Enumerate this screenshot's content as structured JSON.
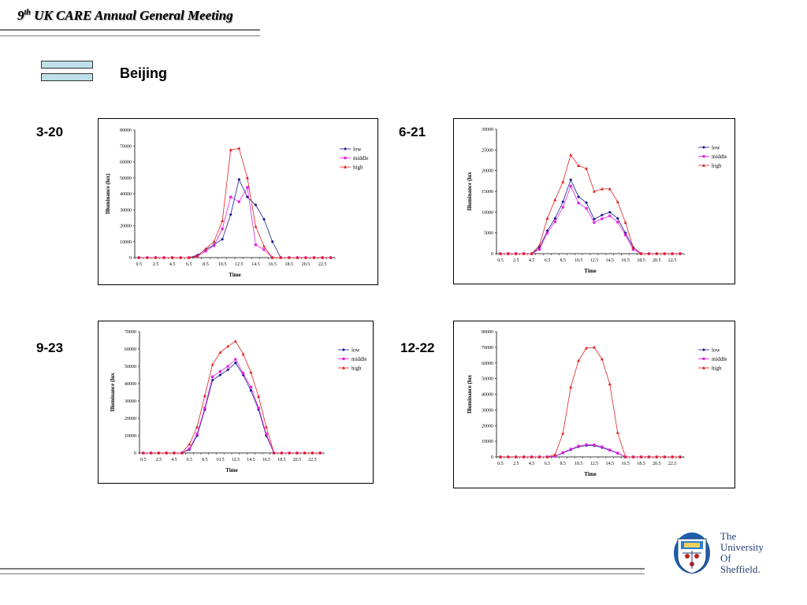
{
  "header": {
    "title_sup": "th",
    "title_num": "9",
    "title": " UK CARE Annual General Meeting"
  },
  "section": {
    "title": "Beijing"
  },
  "logo": {
    "lines": [
      "The",
      "University",
      "Of",
      "Sheffield."
    ]
  },
  "colors": {
    "low": "#1a1a8c",
    "middle": "#e020e0",
    "high": "#e02020",
    "bullet": "#bfe0e8",
    "logo_blue": "#1f3f75"
  },
  "chart_data": [
    {
      "type": "line",
      "label": "3-20",
      "xlabel": "Time",
      "ylabel": "Illuminance (lux)",
      "ylim": [
        0,
        80000
      ],
      "yticks": [
        0,
        10000,
        20000,
        30000,
        40000,
        50000,
        60000,
        70000,
        80000
      ],
      "xticklabels": [
        "0.5",
        "2.5",
        "4.5",
        "6.5",
        "8.5",
        "10.5",
        "12.5",
        "14.5",
        "16.5",
        "18.5",
        "20.5",
        "22.5"
      ],
      "x": [
        0.5,
        1.5,
        2.5,
        3.5,
        4.5,
        5.5,
        6.5,
        7.5,
        8.5,
        9.5,
        10.5,
        11.5,
        12.5,
        13.5,
        14.5,
        15.5,
        16.5,
        17.5,
        18.5,
        19.5,
        20.5,
        21.5,
        22.5,
        23.5
      ],
      "legend_position": "right",
      "series": [
        {
          "name": "low",
          "marker": "diamond",
          "values": [
            0,
            0,
            0,
            0,
            0,
            0,
            0,
            1500,
            5000,
            8000,
            11500,
            27000,
            49000,
            38000,
            33000,
            24000,
            10000,
            0,
            0,
            0,
            0,
            0,
            0,
            0
          ]
        },
        {
          "name": "middle",
          "marker": "square",
          "values": [
            0,
            0,
            0,
            0,
            0,
            0,
            0,
            700,
            4000,
            7500,
            18000,
            38000,
            35000,
            44000,
            8000,
            5000,
            0,
            0,
            0,
            0,
            0,
            0,
            0,
            0
          ]
        },
        {
          "name": "high",
          "marker": "triangle",
          "values": [
            0,
            0,
            0,
            0,
            0,
            0,
            0,
            1000,
            5500,
            10000,
            23000,
            67500,
            68500,
            50000,
            19500,
            7000,
            0,
            0,
            0,
            0,
            0,
            0,
            0,
            0
          ]
        }
      ]
    },
    {
      "type": "line",
      "label": "6-21",
      "xlabel": "Time",
      "ylabel": "Illuminance (lux",
      "ylim": [
        0,
        30000
      ],
      "yticks": [
        0,
        5000,
        10000,
        15000,
        20000,
        25000,
        30000
      ],
      "xticklabels": [
        "0.5",
        "2.5",
        "4.5",
        "6.5",
        "8.5",
        "10.5",
        "12.5",
        "14.5",
        "16.5",
        "18.5",
        "20.5",
        "22.5"
      ],
      "x": [
        0.5,
        1.5,
        2.5,
        3.5,
        4.5,
        5.5,
        6.5,
        7.5,
        8.5,
        9.5,
        10.5,
        11.5,
        12.5,
        13.5,
        14.5,
        15.5,
        16.5,
        17.5,
        18.5,
        19.5,
        20.5,
        21.5,
        22.5,
        23.5
      ],
      "legend_position": "right",
      "series": [
        {
          "name": "low",
          "marker": "diamond",
          "values": [
            0,
            0,
            0,
            0,
            0,
            1500,
            5500,
            8500,
            12500,
            17800,
            13700,
            12300,
            8300,
            9300,
            10000,
            8500,
            5000,
            1500,
            0,
            0,
            0,
            0,
            0,
            0
          ]
        },
        {
          "name": "middle",
          "marker": "square",
          "values": [
            0,
            0,
            0,
            0,
            0,
            1000,
            5000,
            7700,
            11200,
            16300,
            12200,
            10900,
            7500,
            8400,
            9100,
            7600,
            4500,
            1000,
            0,
            0,
            0,
            0,
            0,
            0
          ]
        },
        {
          "name": "high",
          "marker": "triangle",
          "values": [
            0,
            0,
            0,
            0,
            0,
            2000,
            8500,
            13000,
            17300,
            23800,
            21200,
            20500,
            15000,
            15600,
            15600,
            12500,
            7500,
            1500,
            0,
            0,
            0,
            0,
            0,
            0
          ]
        }
      ]
    },
    {
      "type": "line",
      "label": "9-23",
      "xlabel": "Time",
      "ylabel": "Illuminance (lux",
      "ylim": [
        0,
        70000
      ],
      "yticks": [
        0,
        10000,
        20000,
        30000,
        40000,
        50000,
        60000,
        70000
      ],
      "xticklabels": [
        "0.5",
        "2.5",
        "4.5",
        "6.5",
        "8.5",
        "10.5",
        "12.5",
        "14.5",
        "16.5",
        "18.5",
        "20.5",
        "22.5"
      ],
      "x": [
        0.5,
        1.5,
        2.5,
        3.5,
        4.5,
        5.5,
        6.5,
        7.5,
        8.5,
        9.5,
        10.5,
        11.5,
        12.5,
        13.5,
        14.5,
        15.5,
        16.5,
        17.5,
        18.5,
        19.5,
        20.5,
        21.5,
        22.5,
        23.5
      ],
      "legend_position": "right",
      "series": [
        {
          "name": "low",
          "marker": "diamond",
          "values": [
            0,
            0,
            0,
            0,
            0,
            0,
            2000,
            10000,
            25000,
            42000,
            45000,
            48000,
            52000,
            45000,
            36000,
            25000,
            10000,
            0,
            0,
            0,
            0,
            0,
            0,
            0
          ]
        },
        {
          "name": "middle",
          "marker": "square",
          "values": [
            0,
            0,
            0,
            0,
            0,
            0,
            2500,
            11000,
            26000,
            44000,
            47000,
            50000,
            54000,
            46000,
            38000,
            26000,
            11000,
            0,
            0,
            0,
            0,
            0,
            0,
            0
          ]
        },
        {
          "name": "high",
          "marker": "triangle",
          "values": [
            0,
            0,
            0,
            0,
            0,
            0,
            5000,
            15000,
            33000,
            51000,
            58000,
            61500,
            64500,
            57000,
            46500,
            32500,
            15000,
            0,
            0,
            0,
            0,
            0,
            0,
            0
          ]
        }
      ]
    },
    {
      "type": "line",
      "label": "12-22",
      "xlabel": "Time",
      "ylabel": "Illuminance (lux",
      "ylim": [
        0,
        80000
      ],
      "yticks": [
        0,
        10000,
        20000,
        30000,
        40000,
        50000,
        60000,
        70000,
        80000
      ],
      "xticklabels": [
        "0.5",
        "2.5",
        "4.5",
        "6.5",
        "8.5",
        "10.5",
        "12.5",
        "14.5",
        "16.5",
        "18.5",
        "20.5",
        "22.5"
      ],
      "x": [
        0.5,
        1.5,
        2.5,
        3.5,
        4.5,
        5.5,
        6.5,
        7.5,
        8.5,
        9.5,
        10.5,
        11.5,
        12.5,
        13.5,
        14.5,
        15.5,
        16.5,
        17.5,
        18.5,
        19.5,
        20.5,
        21.5,
        22.5,
        23.5
      ],
      "legend_position": "right",
      "series": [
        {
          "name": "low",
          "marker": "diamond",
          "values": [
            0,
            0,
            0,
            0,
            0,
            0,
            0,
            400,
            2500,
            4500,
            6500,
            7300,
            7200,
            6000,
            4200,
            2300,
            0,
            0,
            0,
            0,
            0,
            0,
            0,
            0
          ]
        },
        {
          "name": "middle",
          "marker": "square",
          "values": [
            0,
            0,
            0,
            0,
            0,
            0,
            0,
            500,
            2800,
            5000,
            7000,
            7800,
            7700,
            6500,
            4500,
            2500,
            0,
            0,
            0,
            0,
            0,
            0,
            0,
            0
          ]
        },
        {
          "name": "high",
          "marker": "triangle",
          "values": [
            0,
            0,
            0,
            0,
            0,
            0,
            0,
            1500,
            15000,
            44500,
            61500,
            69500,
            70000,
            62500,
            46500,
            15500,
            0,
            0,
            0,
            0,
            0,
            0,
            0,
            0
          ]
        }
      ]
    }
  ]
}
